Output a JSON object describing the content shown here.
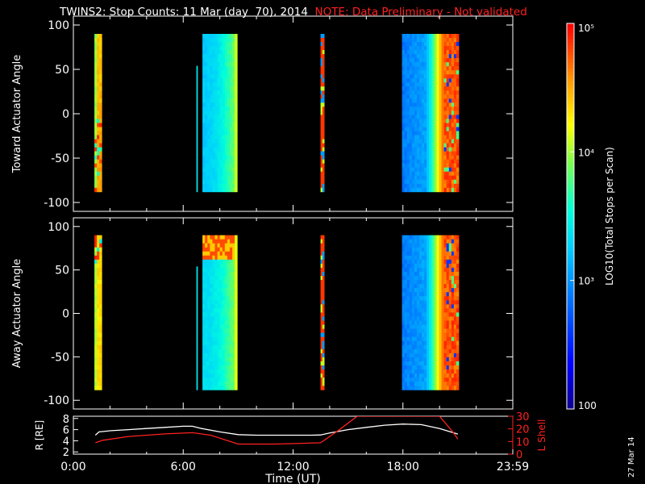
{
  "title": {
    "main": "TWINS2: Stop Counts: 11 Mar (day  70), 2014",
    "note": "NOTE: Data Preliminary - Not validated"
  },
  "stamp": "27 Mar 14",
  "colors": {
    "background": "#000000",
    "foreground": "#ffffff",
    "note": "#ff2020",
    "lshell": "#ff2020"
  },
  "chart_data": [
    {
      "type": "heatmap",
      "name": "toward",
      "ylabel": "Toward Actuator Angle",
      "ylim": [
        -110,
        110
      ],
      "yticks": [
        "100",
        "50",
        "0",
        "-50",
        "-100"
      ],
      "ytick_values": [
        100,
        50,
        0,
        -50,
        -100
      ],
      "xlim": [
        0,
        24
      ],
      "blocks": [
        {
          "t0": 1.15,
          "t1": 1.55,
          "a0": -88,
          "a1": 90,
          "pattern": "orange-noisy"
        },
        {
          "t0": 6.72,
          "t1": 6.78,
          "a0": -88,
          "a1": 54,
          "pattern": "cyan"
        },
        {
          "t0": 7.05,
          "t1": 8.95,
          "a0": -88,
          "a1": 90,
          "pattern": "cyan-yellow"
        },
        {
          "t0": 13.5,
          "t1": 13.7,
          "a0": -88,
          "a1": 90,
          "pattern": "red-noisy"
        },
        {
          "t0": 17.95,
          "t1": 21.05,
          "a0": -88,
          "a1": 90,
          "pattern": "blue-red"
        }
      ]
    },
    {
      "type": "heatmap",
      "name": "away",
      "ylabel": "Away Actuator Angle",
      "ylim": [
        -110,
        110
      ],
      "yticks": [
        "100",
        "50",
        "0",
        "-50",
        "-100"
      ],
      "ytick_values": [
        100,
        50,
        0,
        -50,
        -100
      ],
      "xlim": [
        0,
        24
      ],
      "blocks": [
        {
          "t0": 1.15,
          "t1": 1.55,
          "a0": -88,
          "a1": 90,
          "pattern": "yellow-top-noisy"
        },
        {
          "t0": 6.72,
          "t1": 6.78,
          "a0": -88,
          "a1": 54,
          "pattern": "cyan"
        },
        {
          "t0": 7.05,
          "t1": 8.95,
          "a0": -88,
          "a1": 90,
          "pattern": "cyan-top-red"
        },
        {
          "t0": 13.5,
          "t1": 13.7,
          "a0": -88,
          "a1": 90,
          "pattern": "red-noisy"
        },
        {
          "t0": 17.95,
          "t1": 21.05,
          "a0": -88,
          "a1": 90,
          "pattern": "blue-red"
        }
      ]
    },
    {
      "type": "line",
      "name": "orbit",
      "xlabel": "Time (UT)",
      "xlim": [
        0,
        24
      ],
      "xticks": [
        "0:00",
        "6:00",
        "12:00",
        "18:00",
        "23:59"
      ],
      "xtick_values": [
        0,
        6,
        12,
        18,
        24
      ],
      "left_axis": {
        "label": "R [RE]",
        "ylim": [
          1.6,
          8.4
        ],
        "yticks": [
          "8",
          "6",
          "4",
          "2"
        ],
        "ytick_values": [
          8,
          6,
          4,
          2
        ]
      },
      "right_axis": {
        "label": "L Shell",
        "ylim": [
          0,
          30
        ],
        "yticks": [
          "30",
          "20",
          "10",
          "0"
        ],
        "ytick_values": [
          30,
          20,
          10,
          0
        ]
      },
      "series": [
        {
          "axis": "left",
          "x": [
            1.2,
            1.4,
            2,
            3,
            4,
            5,
            6,
            6.5,
            7,
            8,
            9,
            10,
            11,
            12,
            13,
            13.5,
            14,
            15,
            16,
            17,
            18,
            19,
            20,
            21
          ],
          "y": [
            5.0,
            5.6,
            5.8,
            6.0,
            6.2,
            6.4,
            6.6,
            6.6,
            6.2,
            5.6,
            5.1,
            5.0,
            5.0,
            5.0,
            5.0,
            5.05,
            5.4,
            6.0,
            6.4,
            6.8,
            7.0,
            6.9,
            6.2,
            5.2
          ]
        },
        {
          "axis": "right",
          "x": [
            1.2,
            1.6,
            3,
            5,
            6.5,
            7.5,
            9,
            11,
            13.5,
            14.5,
            15.5,
            20,
            20.7,
            21
          ],
          "y": [
            9,
            11,
            14,
            16,
            17,
            15,
            8,
            8,
            9,
            19,
            30,
            30,
            18,
            12
          ]
        }
      ]
    },
    {
      "type": "colorbar",
      "label": "LOG10(Total Stops per Scan)",
      "scale": "log",
      "range": [
        100,
        100000
      ],
      "ticks": [
        {
          "label": "10⁵",
          "value": 100000
        },
        {
          "label": "10⁴",
          "value": 10000
        },
        {
          "label": "10³",
          "value": 1000
        },
        {
          "label": "100",
          "value": 100
        }
      ]
    }
  ]
}
